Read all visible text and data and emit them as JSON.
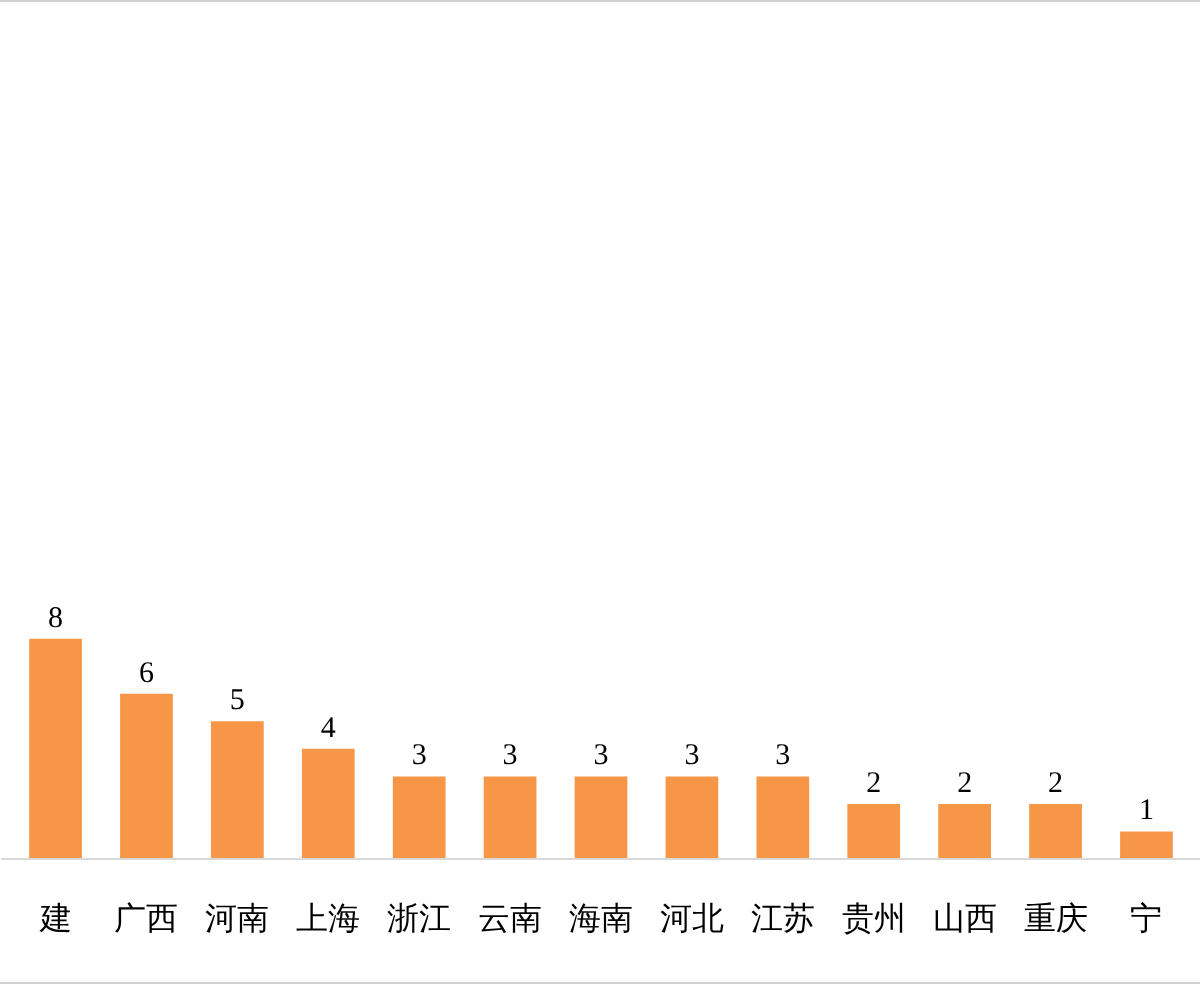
{
  "chart_data": {
    "type": "bar",
    "categories": [
      "建",
      "广西",
      "河南",
      "上海",
      "浙江",
      "云南",
      "海南",
      "河北",
      "江苏",
      "贵州",
      "山西",
      "重庆",
      "宁"
    ],
    "values": [
      8,
      6,
      5,
      4,
      3,
      3,
      3,
      3,
      3,
      2,
      2,
      2,
      1
    ],
    "color": "#f79646",
    "data_labels": true
  }
}
